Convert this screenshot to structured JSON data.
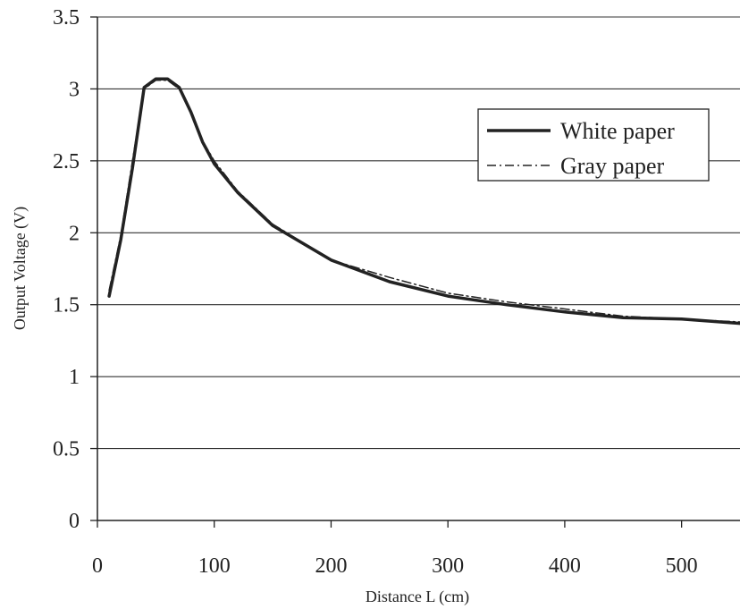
{
  "chart_data": {
    "type": "line",
    "title": "",
    "xlabel": "Distance L (cm)",
    "ylabel": "Output Voltage (V)",
    "xlim": [
      0,
      550
    ],
    "ylim": [
      0,
      3.5
    ],
    "x_ticks": [
      "0",
      "100",
      "200",
      "300",
      "400",
      "500"
    ],
    "y_ticks": [
      "0",
      "0.5",
      "1",
      "1.5",
      "2",
      "2.5",
      "3",
      "3.5"
    ],
    "grid": "horizontal",
    "legend_position": "top-right",
    "series": [
      {
        "name": "White paper",
        "style": "solid",
        "color": "#222222",
        "x": [
          10,
          20,
          30,
          40,
          50,
          60,
          70,
          80,
          90,
          100,
          120,
          150,
          200,
          250,
          300,
          350,
          400,
          450,
          500,
          550
        ],
        "y": [
          1.56,
          1.95,
          2.45,
          3.01,
          3.07,
          3.07,
          3.01,
          2.84,
          2.63,
          2.48,
          2.28,
          2.05,
          1.81,
          1.66,
          1.56,
          1.5,
          1.45,
          1.41,
          1.4,
          1.37
        ]
      },
      {
        "name": "Gray paper",
        "style": "dash-dot",
        "color": "#222222",
        "x": [
          10,
          20,
          30,
          40,
          50,
          60,
          70,
          80,
          90,
          100,
          120,
          150,
          200,
          250,
          300,
          350,
          400,
          450,
          500,
          550
        ],
        "y": [
          1.6,
          1.98,
          2.5,
          3.0,
          3.06,
          3.06,
          3.0,
          2.83,
          2.64,
          2.5,
          2.29,
          2.06,
          1.81,
          1.69,
          1.58,
          1.52,
          1.47,
          1.42,
          1.4,
          1.38
        ]
      }
    ]
  }
}
